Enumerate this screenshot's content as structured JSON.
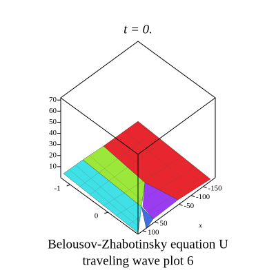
{
  "chart_data": {
    "type": "surface3d",
    "title": "t = 0.",
    "caption": [
      "Belousov-Zhabotinsky equation U",
      "traveling wave plot 6"
    ],
    "x_label": "x",
    "xlim": [
      -200,
      120
    ],
    "xticks": [
      -150,
      -100,
      -50,
      50,
      100
    ],
    "ylim": [
      -1.25,
      0.8
    ],
    "yticks": [
      -1,
      0
    ],
    "zlim": [
      0,
      72
    ],
    "zticks": [
      10,
      20,
      30,
      40,
      50,
      60,
      70
    ]
  }
}
